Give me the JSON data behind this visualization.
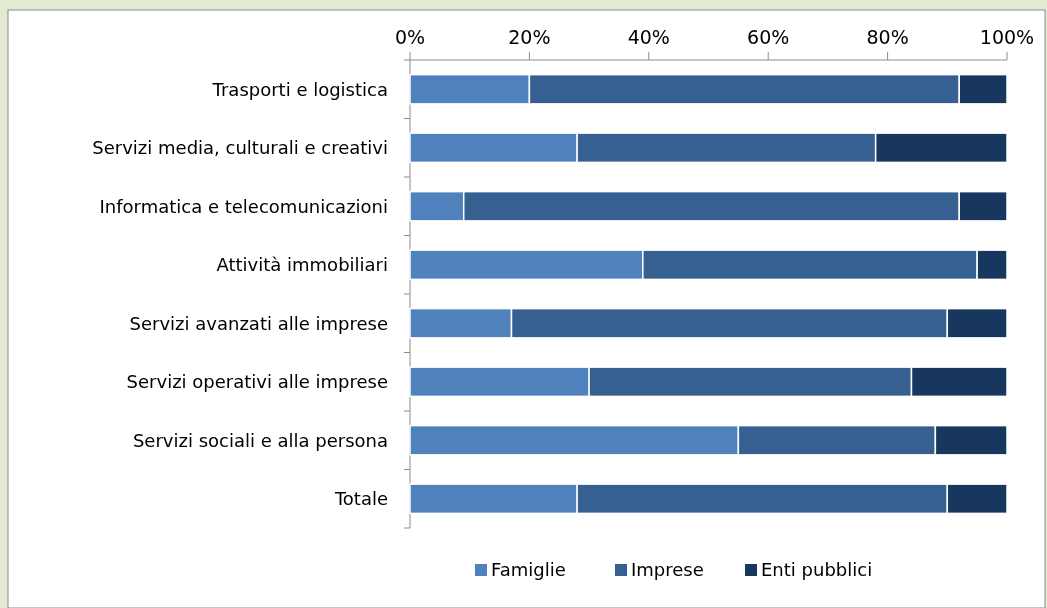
{
  "chart_data": {
    "type": "bar",
    "orientation": "horizontal",
    "stacked": true,
    "categories": [
      "Trasporti e logistica",
      "Servizi media, culturali e creativi",
      "Informatica e telecomunicazioni",
      "Attività immobiliari",
      "Servizi avanzati alle imprese",
      "Servizi operativi alle imprese",
      "Servizi sociali e alla persona",
      "Totale"
    ],
    "series": [
      {
        "name": "Famiglie",
        "color": "#4f81bd",
        "values": [
          20,
          28,
          9,
          39,
          17,
          30,
          55,
          28
        ]
      },
      {
        "name": "Imprese",
        "color": "#366092",
        "values": [
          72,
          50,
          83,
          56,
          73,
          54,
          33,
          62
        ]
      },
      {
        "name": "Enti pubblici",
        "color": "#17375e",
        "values": [
          8,
          22,
          8,
          5,
          10,
          16,
          12,
          10
        ]
      }
    ],
    "xlim": [
      0,
      100
    ],
    "xticks": [
      {
        "value": 0,
        "label": "0%"
      },
      {
        "value": 20,
        "label": "20%"
      },
      {
        "value": 40,
        "label": "40%"
      },
      {
        "value": 60,
        "label": "60%"
      },
      {
        "value": 80,
        "label": "80%"
      },
      {
        "value": 100,
        "label": "100%"
      }
    ],
    "grid": false,
    "legend": "bottom"
  }
}
